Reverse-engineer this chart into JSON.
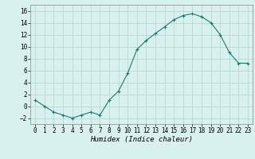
{
  "x": [
    0,
    1,
    2,
    3,
    4,
    5,
    6,
    7,
    8,
    9,
    10,
    11,
    12,
    13,
    14,
    15,
    16,
    17,
    18,
    19,
    20,
    21,
    22,
    23
  ],
  "y": [
    1,
    0,
    -1,
    -1.5,
    -2,
    -1.5,
    -1,
    -1.5,
    1,
    2.5,
    5.5,
    9.5,
    11,
    12.2,
    13.3,
    14.5,
    15.2,
    15.5,
    15,
    14,
    12,
    9,
    7.2,
    7.2
  ],
  "line_color": "#1a7a6e",
  "marker": "+",
  "marker_color": "#1a7a6e",
  "bg_color": "#d8f0ee",
  "grid_color": "#b8d8d4",
  "xlabel": "Humidex (Indice chaleur)",
  "ylim": [
    -3,
    17
  ],
  "xlim": [
    -0.5,
    23.5
  ],
  "yticks": [
    -2,
    0,
    2,
    4,
    6,
    8,
    10,
    12,
    14,
    16
  ],
  "xticks": [
    0,
    1,
    2,
    3,
    4,
    5,
    6,
    7,
    8,
    9,
    10,
    11,
    12,
    13,
    14,
    15,
    16,
    17,
    18,
    19,
    20,
    21,
    22,
    23
  ],
  "xlabel_fontsize": 6.5,
  "tick_fontsize": 5.5
}
